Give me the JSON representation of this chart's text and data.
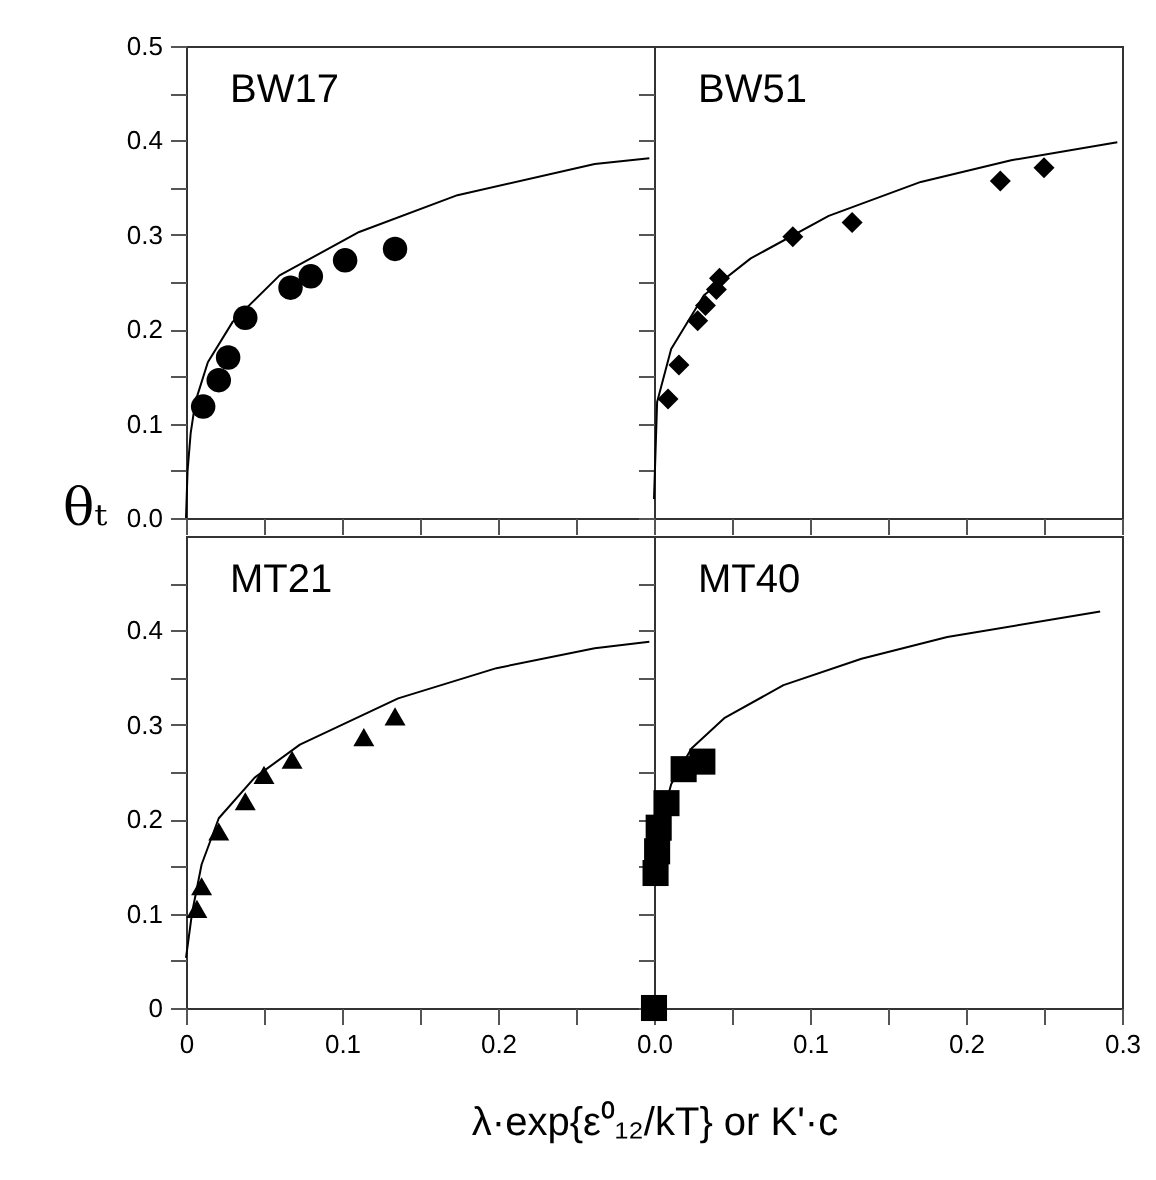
{
  "chart_data": [
    {
      "type": "scatter",
      "ylabel": "θₜ",
      "annotations": [
        "BW17"
      ],
      "tick_labels": "y",
      "xlim": [
        0,
        0.3
      ],
      "ylim": [
        0,
        0.5
      ],
      "xticks": [
        {
          "value": 0,
          "label": null
        },
        {
          "value": 0.05,
          "label": null
        },
        {
          "value": 0.1,
          "label": null
        },
        {
          "value": 0.15,
          "label": null
        },
        {
          "value": 0.2,
          "label": null
        },
        {
          "value": 0.25,
          "label": null
        }
      ],
      "yticks": [
        {
          "value": 0,
          "label": "0.0"
        },
        {
          "value": 0.05,
          "label": null
        },
        {
          "value": 0.1,
          "label": "0.1"
        },
        {
          "value": 0.15,
          "label": null
        },
        {
          "value": 0.2,
          "label": "0.2"
        },
        {
          "value": 0.25,
          "label": null
        },
        {
          "value": 0.3,
          "label": "0.3"
        },
        {
          "value": 0.35,
          "label": null
        },
        {
          "value": 0.4,
          "label": "0.4"
        },
        {
          "value": 0.45,
          "label": null
        },
        {
          "value": 0.5,
          "label": "0.5"
        }
      ],
      "series": [
        {
          "type": "scatter",
          "color": "#000000",
          "marker": "circle",
          "x": [
            0.011,
            0.021,
            0.027,
            0.038,
            0.067,
            0.08,
            0.102,
            0.134
          ],
          "values": [
            0.118,
            0.146,
            0.17,
            0.212,
            0.244,
            0.256,
            0.273,
            0.285
          ]
        },
        {
          "type": "line",
          "color": "#000000",
          "x": [
            0,
            0.001,
            0.003,
            0.006,
            0.014,
            0.03,
            0.06,
            0.111,
            0.174,
            0.262,
            0.297
          ],
          "values": [
            0,
            0.05,
            0.09,
            0.123,
            0.165,
            0.208,
            0.257,
            0.303,
            0.342,
            0.375,
            0.381
          ]
        }
      ]
    },
    {
      "type": "scatter",
      "annotations": [
        "BW51"
      ],
      "tick_labels": false,
      "xlim": [
        0,
        0.3
      ],
      "ylim": [
        0,
        0.5
      ],
      "xticks": [
        {
          "value": 0,
          "label": null
        },
        {
          "value": 0.05,
          "label": null
        },
        {
          "value": 0.1,
          "label": null
        },
        {
          "value": 0.15,
          "label": null
        },
        {
          "value": 0.2,
          "label": null
        },
        {
          "value": 0.25,
          "label": null
        },
        {
          "value": 0.3,
          "label": null
        }
      ],
      "yticks": [
        {
          "value": 0,
          "label": null
        },
        {
          "value": 0.05,
          "label": null
        },
        {
          "value": 0.1,
          "label": null
        },
        {
          "value": 0.15,
          "label": null
        },
        {
          "value": 0.2,
          "label": null
        },
        {
          "value": 0.25,
          "label": null
        },
        {
          "value": 0.3,
          "label": null
        },
        {
          "value": 0.35,
          "label": null
        },
        {
          "value": 0.4,
          "label": null
        },
        {
          "value": 0.45,
          "label": null
        }
      ],
      "series": [
        {
          "type": "scatter",
          "color": "#000000",
          "marker": "diamond",
          "x": [
            0.009,
            0.016,
            0.028,
            0.033,
            0.04,
            0.042,
            0.089,
            0.127,
            0.222,
            0.25
          ],
          "values": [
            0.126,
            0.162,
            0.209,
            0.225,
            0.242,
            0.254,
            0.298,
            0.313,
            0.357,
            0.371
          ]
        },
        {
          "type": "line",
          "color": "#000000",
          "x": [
            0,
            0.002,
            0.011,
            0.032,
            0.062,
            0.112,
            0.171,
            0.229,
            0.297
          ],
          "values": [
            0.02,
            0.123,
            0.179,
            0.236,
            0.275,
            0.32,
            0.356,
            0.379,
            0.398
          ]
        }
      ]
    },
    {
      "type": "scatter",
      "annotations": [
        "MT21"
      ],
      "xlabel": "λ·exp{ε⁰₁₂/kT}   or   K'·c",
      "xlim": [
        0,
        0.3
      ],
      "ylim": [
        0,
        0.5
      ],
      "xticks": [
        {
          "value": 0,
          "label": "0"
        },
        {
          "value": 0.05,
          "label": null
        },
        {
          "value": 0.1,
          "label": "0.1"
        },
        {
          "value": 0.15,
          "label": null
        },
        {
          "value": 0.2,
          "label": "0.2"
        },
        {
          "value": 0.25,
          "label": null
        }
      ],
      "yticks": [
        {
          "value": 0,
          "label": "0"
        },
        {
          "value": 0.05,
          "label": null
        },
        {
          "value": 0.1,
          "label": "0.1"
        },
        {
          "value": 0.15,
          "label": null
        },
        {
          "value": 0.2,
          "label": "0.2"
        },
        {
          "value": 0.25,
          "label": null
        },
        {
          "value": 0.3,
          "label": "0.3"
        },
        {
          "value": 0.35,
          "label": null
        },
        {
          "value": 0.4,
          "label": "0.4"
        },
        {
          "value": 0.45,
          "label": null
        }
      ],
      "series": [
        {
          "type": "scatter",
          "color": "#000000",
          "marker": "triangle",
          "x": [
            0.007,
            0.01,
            0.021,
            0.038,
            0.05,
            0.068,
            0.114,
            0.134
          ],
          "values": [
            0.105,
            0.129,
            0.187,
            0.219,
            0.247,
            0.263,
            0.287,
            0.309
          ]
        },
        {
          "type": "line",
          "color": "#000000",
          "x": [
            0,
            0.004,
            0.01,
            0.021,
            0.044,
            0.073,
            0.136,
            0.199,
            0.262,
            0.297
          ],
          "values": [
            0.053,
            0.102,
            0.152,
            0.201,
            0.244,
            0.279,
            0.328,
            0.36,
            0.381,
            0.388
          ]
        }
      ]
    },
    {
      "type": "scatter",
      "annotations": [
        "MT40"
      ],
      "tick_labels": "x",
      "xlim": [
        0,
        0.3
      ],
      "ylim": [
        0,
        0.5
      ],
      "xticks": [
        {
          "value": 0,
          "label": "0.0"
        },
        {
          "value": 0.05,
          "label": null
        },
        {
          "value": 0.1,
          "label": "0.1"
        },
        {
          "value": 0.15,
          "label": null
        },
        {
          "value": 0.2,
          "label": "0.2"
        },
        {
          "value": 0.25,
          "label": null
        },
        {
          "value": 0.3,
          "label": "0.3"
        }
      ],
      "yticks": [
        {
          "value": 0,
          "label": null
        },
        {
          "value": 0.05,
          "label": null
        },
        {
          "value": 0.1,
          "label": null
        },
        {
          "value": 0.15,
          "label": null
        },
        {
          "value": 0.2,
          "label": null
        },
        {
          "value": 0.25,
          "label": null
        },
        {
          "value": 0.3,
          "label": null
        },
        {
          "value": 0.35,
          "label": null
        },
        {
          "value": 0.4,
          "label": null
        },
        {
          "value": 0.45,
          "label": null
        }
      ],
      "series": [
        {
          "type": "scatter",
          "color": "#000000",
          "marker": "square",
          "x": [
            0,
            0.001,
            0.002,
            0.003,
            0.008,
            0.019,
            0.031
          ],
          "values": [
            0,
            0.143,
            0.166,
            0.191,
            0.217,
            0.253,
            0.261
          ]
        },
        {
          "type": "line",
          "color": "#000000",
          "x": [
            0.005,
            0.011,
            0.024,
            0.045,
            0.083,
            0.133,
            0.188,
            0.286
          ],
          "values": [
            0.2,
            0.237,
            0.275,
            0.307,
            0.342,
            0.37,
            0.393,
            0.42
          ]
        }
      ]
    }
  ]
}
